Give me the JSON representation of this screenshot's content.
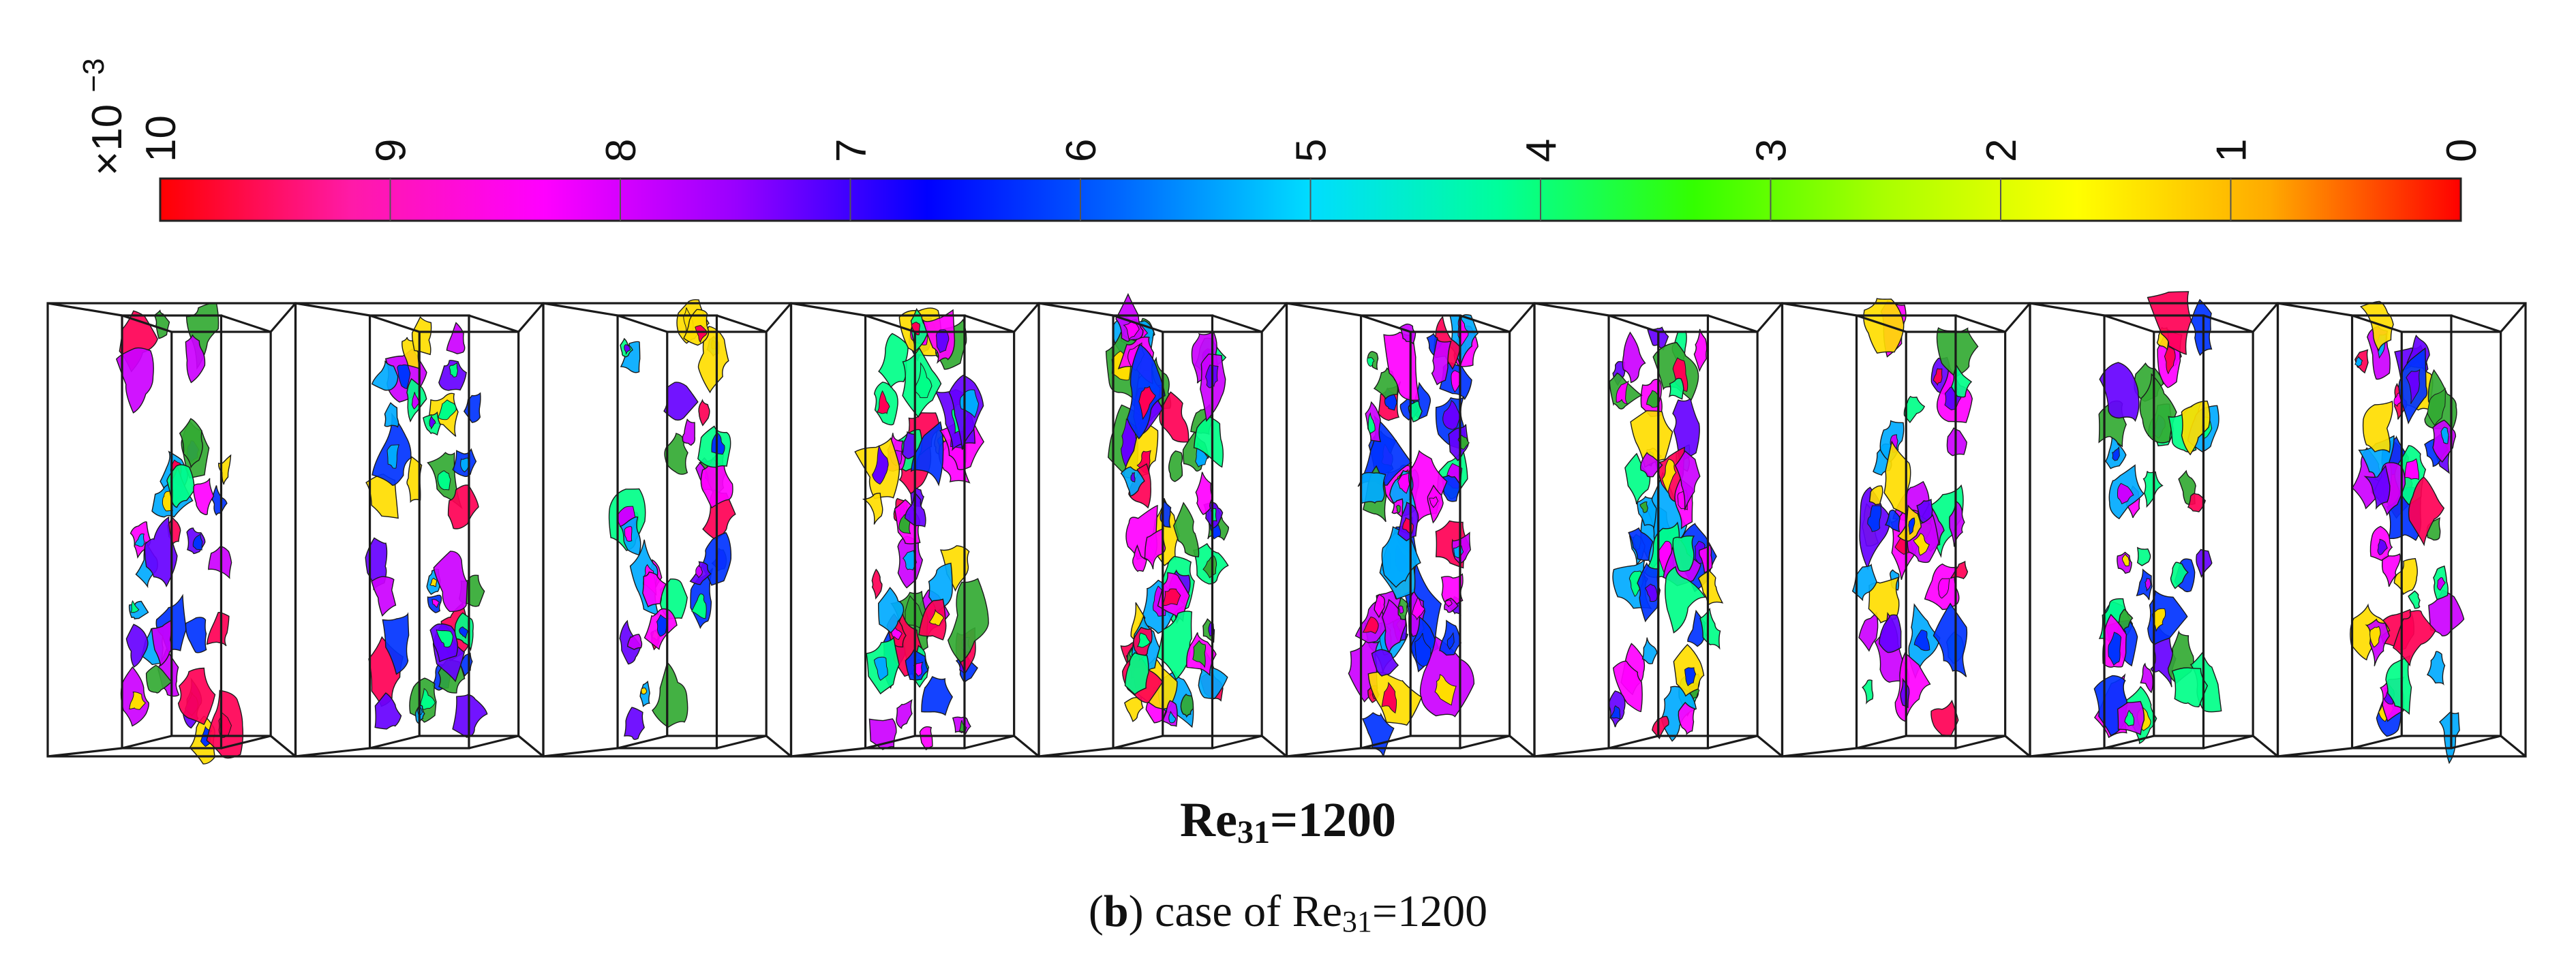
{
  "colorbar": {
    "multiplier_prefix": "×10",
    "multiplier_exponent": "−3",
    "ticks": [
      "10",
      "9",
      "8",
      "7",
      "6",
      "5",
      "4",
      "3",
      "2",
      "1",
      "0"
    ],
    "colors": [
      "#ff0000",
      "#ff1aa8",
      "#ff00ff",
      "#9900ff",
      "#0000ff",
      "#0066ff",
      "#00ddff",
      "#00ff99",
      "#33ff00",
      "#aaff00",
      "#ffff00",
      "#ffaa00",
      "#ff0000"
    ]
  },
  "panels": {
    "count": 10,
    "blob_colors": [
      "#ff0055",
      "#ff00ff",
      "#cc00ff",
      "#6600ff",
      "#0033ff",
      "#00aaff",
      "#00ff88",
      "#ffdd00",
      "#33aa33"
    ],
    "density": [
      0.6,
      0.65,
      0.6,
      0.85,
      1.0,
      1.0,
      0.8,
      0.7,
      0.75,
      0.7
    ]
  },
  "case_title": {
    "base": "Re",
    "subscript": "31",
    "value": "=1200"
  },
  "figure_caption": {
    "open": "(",
    "letter": "b",
    "close": ") case of Re",
    "subscript": "31",
    "value": "=1200"
  }
}
